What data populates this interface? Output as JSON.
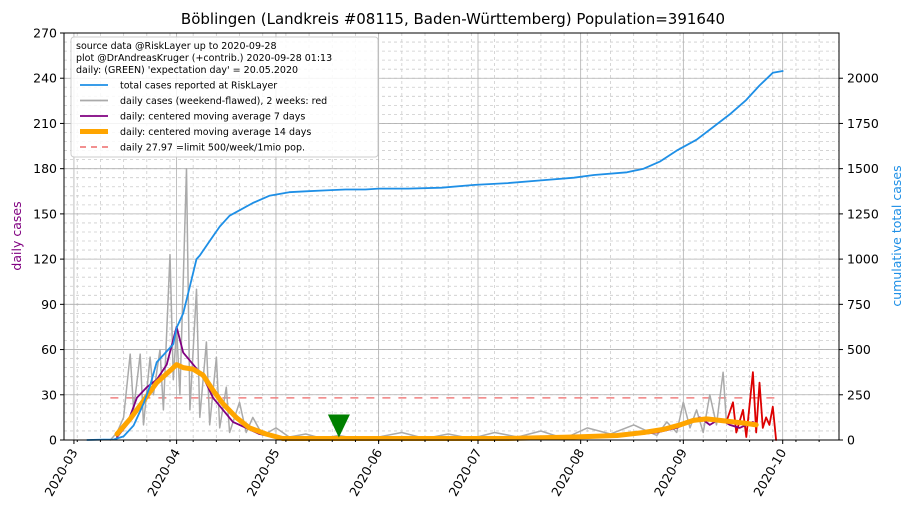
{
  "chart_data": {
    "type": "line",
    "title": "Böblingen (Landkreis #08115, Baden-Württemberg) Population=391640",
    "ylabel_left": "daily cases",
    "ylabel_right": "cumulative total cases",
    "ylim_left": [
      0,
      270
    ],
    "ylim_right": [
      0,
      2250
    ],
    "xlim": [
      "2020-02-27",
      "2020-10-18"
    ],
    "yticks_left": [
      0,
      30,
      60,
      90,
      120,
      150,
      180,
      210,
      240,
      270
    ],
    "yticks_right": [
      0,
      250,
      500,
      750,
      1000,
      1250,
      1500,
      1750,
      2000
    ],
    "xticks": [
      "2020-03",
      "2020-04",
      "2020-05",
      "2020-06",
      "2020-07",
      "2020-08",
      "2020-09",
      "2020-10"
    ],
    "grid": true,
    "legend_position": "top-left",
    "info_lines": [
      "source data @RiskLayer up to 2020-09-28",
      "plot @DrAndreasKruger (+contrib.) 2020-09-28 01:13",
      "daily: (GREEN) 'expectation day' = 20.05.2020"
    ],
    "legend": [
      {
        "label": "total cases reported at RiskLayer",
        "color": "#1e8fe6",
        "style": "line"
      },
      {
        "label": "daily cases (weekend-flawed), 2 weeks: red",
        "color": "#aaaaaa",
        "style": "line"
      },
      {
        "label": "daily: centered moving average 7 days",
        "color": "#800080",
        "style": "line"
      },
      {
        "label": "daily: centered moving average 14 days",
        "color": "#ffa500",
        "style": "thick"
      },
      {
        "label": "daily 27.97 =limit 500/week/1mio pop.",
        "color": "#f08080",
        "style": "dashed"
      }
    ],
    "limit_value": 27.97,
    "expectation_day": "2020-05-20",
    "series": [
      {
        "name": "total cases reported at RiskLayer",
        "axis": "right",
        "color": "#1e8fe6",
        "points": [
          [
            "2020-03-05",
            0
          ],
          [
            "2020-03-10",
            2
          ],
          [
            "2020-03-13",
            3
          ],
          [
            "2020-03-16",
            20
          ],
          [
            "2020-03-19",
            80
          ],
          [
            "2020-03-22",
            200
          ],
          [
            "2020-03-24",
            300
          ],
          [
            "2020-03-26",
            430
          ],
          [
            "2020-03-28",
            470
          ],
          [
            "2020-03-31",
            530
          ],
          [
            "2020-04-01",
            620
          ],
          [
            "2020-04-03",
            700
          ],
          [
            "2020-04-05",
            850
          ],
          [
            "2020-04-07",
            1000
          ],
          [
            "2020-04-08",
            1020
          ],
          [
            "2020-04-11",
            1100
          ],
          [
            "2020-04-14",
            1180
          ],
          [
            "2020-04-17",
            1240
          ],
          [
            "2020-04-20",
            1270
          ],
          [
            "2020-04-24",
            1310
          ],
          [
            "2020-04-29",
            1350
          ],
          [
            "2020-05-05",
            1370
          ],
          [
            "2020-05-10",
            1375
          ],
          [
            "2020-05-16",
            1380
          ],
          [
            "2020-05-22",
            1385
          ],
          [
            "2020-05-28",
            1385
          ],
          [
            "2020-06-01",
            1390
          ],
          [
            "2020-06-10",
            1390
          ],
          [
            "2020-06-20",
            1395
          ],
          [
            "2020-06-30",
            1410
          ],
          [
            "2020-07-10",
            1420
          ],
          [
            "2020-07-20",
            1435
          ],
          [
            "2020-07-30",
            1450
          ],
          [
            "2020-08-05",
            1465
          ],
          [
            "2020-08-15",
            1480
          ],
          [
            "2020-08-20",
            1500
          ],
          [
            "2020-08-25",
            1540
          ],
          [
            "2020-08-30",
            1600
          ],
          [
            "2020-09-05",
            1660
          ],
          [
            "2020-09-10",
            1730
          ],
          [
            "2020-09-15",
            1800
          ],
          [
            "2020-09-20",
            1880
          ],
          [
            "2020-09-24",
            1960
          ],
          [
            "2020-09-28",
            2030
          ],
          [
            "2020-10-01",
            2040
          ]
        ]
      },
      {
        "name": "daily cases (weekend-flawed), 2 weeks: red",
        "axis": "left",
        "color": "#aaaaaa",
        "points": [
          [
            "2020-03-12",
            0
          ],
          [
            "2020-03-14",
            5
          ],
          [
            "2020-03-16",
            15
          ],
          [
            "2020-03-18",
            57
          ],
          [
            "2020-03-19",
            20
          ],
          [
            "2020-03-21",
            57
          ],
          [
            "2020-03-22",
            10
          ],
          [
            "2020-03-24",
            55
          ],
          [
            "2020-03-25",
            30
          ],
          [
            "2020-03-27",
            60
          ],
          [
            "2020-03-28",
            20
          ],
          [
            "2020-03-30",
            123
          ],
          [
            "2020-03-31",
            40
          ],
          [
            "2020-04-01",
            75
          ],
          [
            "2020-04-02",
            30
          ],
          [
            "2020-04-04",
            180
          ],
          [
            "2020-04-05",
            20
          ],
          [
            "2020-04-07",
            100
          ],
          [
            "2020-04-08",
            15
          ],
          [
            "2020-04-10",
            65
          ],
          [
            "2020-04-11",
            10
          ],
          [
            "2020-04-13",
            55
          ],
          [
            "2020-04-14",
            8
          ],
          [
            "2020-04-16",
            35
          ],
          [
            "2020-04-17",
            5
          ],
          [
            "2020-04-20",
            25
          ],
          [
            "2020-04-22",
            5
          ],
          [
            "2020-04-24",
            15
          ],
          [
            "2020-04-27",
            3
          ],
          [
            "2020-05-01",
            8
          ],
          [
            "2020-05-05",
            2
          ],
          [
            "2020-05-10",
            4
          ],
          [
            "2020-05-15",
            1
          ],
          [
            "2020-05-20",
            3
          ],
          [
            "2020-05-25",
            1
          ],
          [
            "2020-06-01",
            2
          ],
          [
            "2020-06-08",
            5
          ],
          [
            "2020-06-15",
            1
          ],
          [
            "2020-06-22",
            4
          ],
          [
            "2020-06-29",
            1
          ],
          [
            "2020-07-06",
            5
          ],
          [
            "2020-07-13",
            2
          ],
          [
            "2020-07-20",
            6
          ],
          [
            "2020-07-27",
            1
          ],
          [
            "2020-08-03",
            8
          ],
          [
            "2020-08-10",
            4
          ],
          [
            "2020-08-17",
            10
          ],
          [
            "2020-08-24",
            3
          ],
          [
            "2020-08-27",
            12
          ],
          [
            "2020-08-30",
            5
          ],
          [
            "2020-09-01",
            25
          ],
          [
            "2020-09-03",
            8
          ],
          [
            "2020-09-05",
            20
          ],
          [
            "2020-09-07",
            5
          ],
          [
            "2020-09-09",
            30
          ],
          [
            "2020-09-11",
            10
          ],
          [
            "2020-09-13",
            45
          ],
          [
            "2020-09-14",
            12
          ]
        ]
      },
      {
        "name": "daily cases last 2 weeks",
        "axis": "left",
        "color": "#dd0000",
        "points": [
          [
            "2020-09-14",
            12
          ],
          [
            "2020-09-16",
            25
          ],
          [
            "2020-09-17",
            5
          ],
          [
            "2020-09-19",
            20
          ],
          [
            "2020-09-20",
            2
          ],
          [
            "2020-09-22",
            45
          ],
          [
            "2020-09-23",
            5
          ],
          [
            "2020-09-24",
            38
          ],
          [
            "2020-09-25",
            8
          ],
          [
            "2020-09-26",
            15
          ],
          [
            "2020-09-27",
            10
          ],
          [
            "2020-09-28",
            22
          ],
          [
            "2020-09-29",
            0
          ]
        ]
      },
      {
        "name": "daily: centered moving average 7 days",
        "axis": "left",
        "color": "#800080",
        "points": [
          [
            "2020-03-14",
            2
          ],
          [
            "2020-03-17",
            10
          ],
          [
            "2020-03-20",
            28
          ],
          [
            "2020-03-23",
            35
          ],
          [
            "2020-03-26",
            40
          ],
          [
            "2020-03-29",
            50
          ],
          [
            "2020-04-01",
            75
          ],
          [
            "2020-04-03",
            58
          ],
          [
            "2020-04-06",
            50
          ],
          [
            "2020-04-09",
            42
          ],
          [
            "2020-04-12",
            28
          ],
          [
            "2020-04-15",
            20
          ],
          [
            "2020-04-18",
            12
          ],
          [
            "2020-04-22",
            8
          ],
          [
            "2020-04-26",
            4
          ],
          [
            "2020-05-01",
            2
          ],
          [
            "2020-05-10",
            1
          ],
          [
            "2020-05-20",
            1
          ],
          [
            "2020-06-01",
            1
          ],
          [
            "2020-06-20",
            1
          ],
          [
            "2020-07-10",
            1
          ],
          [
            "2020-07-30",
            2
          ],
          [
            "2020-08-15",
            3
          ],
          [
            "2020-08-24",
            5
          ],
          [
            "2020-08-30",
            8
          ],
          [
            "2020-09-03",
            12
          ],
          [
            "2020-09-06",
            15
          ],
          [
            "2020-09-09",
            10
          ],
          [
            "2020-09-12",
            14
          ],
          [
            "2020-09-15",
            10
          ],
          [
            "2020-09-18",
            8
          ],
          [
            "2020-09-22",
            12
          ]
        ]
      },
      {
        "name": "daily: centered moving average 14 days",
        "axis": "left",
        "color": "#ffa500",
        "points": [
          [
            "2020-03-14",
            4
          ],
          [
            "2020-03-18",
            14
          ],
          [
            "2020-03-22",
            26
          ],
          [
            "2020-03-26",
            38
          ],
          [
            "2020-03-30",
            46
          ],
          [
            "2020-04-01",
            50
          ],
          [
            "2020-04-03",
            48
          ],
          [
            "2020-04-06",
            47
          ],
          [
            "2020-04-09",
            43
          ],
          [
            "2020-04-12",
            33
          ],
          [
            "2020-04-15",
            24
          ],
          [
            "2020-04-19",
            15
          ],
          [
            "2020-04-23",
            8
          ],
          [
            "2020-04-28",
            4
          ],
          [
            "2020-05-03",
            1
          ],
          [
            "2020-05-15",
            1
          ],
          [
            "2020-06-01",
            1
          ],
          [
            "2020-06-20",
            1
          ],
          [
            "2020-07-10",
            1
          ],
          [
            "2020-07-30",
            2
          ],
          [
            "2020-08-12",
            3
          ],
          [
            "2020-08-20",
            5
          ],
          [
            "2020-08-26",
            7
          ],
          [
            "2020-08-31",
            10
          ],
          [
            "2020-09-04",
            13
          ],
          [
            "2020-09-08",
            14
          ],
          [
            "2020-09-12",
            13
          ],
          [
            "2020-09-16",
            12
          ],
          [
            "2020-09-20",
            11
          ],
          [
            "2020-09-23",
            10
          ]
        ]
      }
    ]
  }
}
